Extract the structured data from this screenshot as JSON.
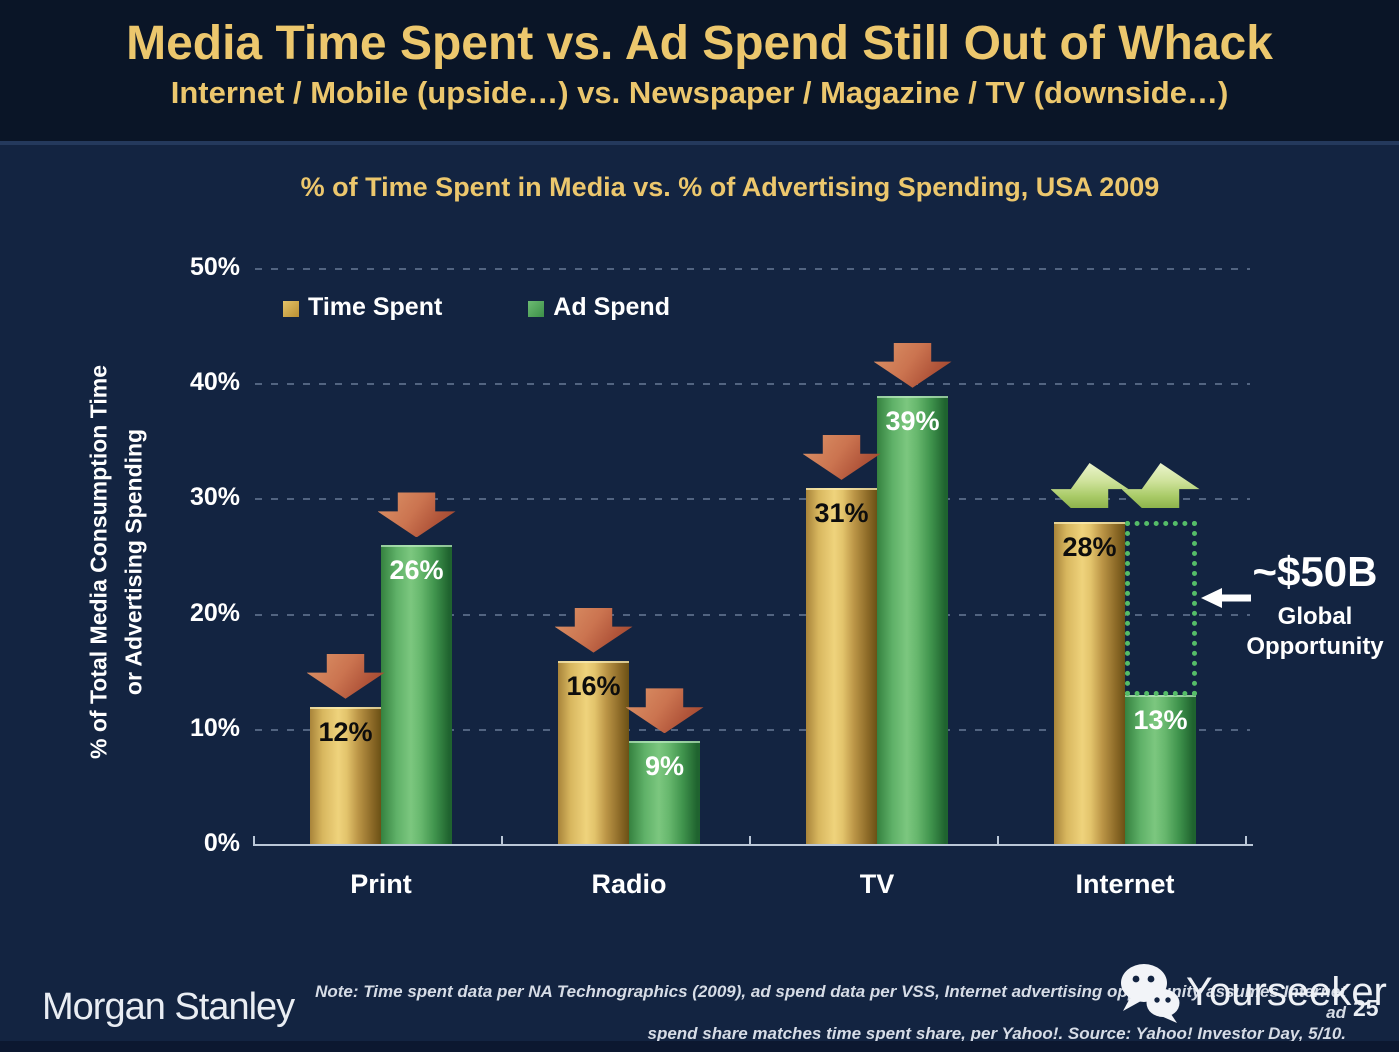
{
  "header": {
    "title": "Media Time Spent vs. Ad Spend Still Out of Whack",
    "subtitle": "Internet / Mobile (upside…) vs. Newspaper / Magazine / TV (downside…)"
  },
  "chart_data": {
    "type": "bar",
    "title": "% of Time Spent in Media vs. % of Advertising Spending, USA 2009",
    "categories": [
      "Print",
      "Radio",
      "TV",
      "Internet"
    ],
    "series": [
      {
        "name": "Time Spent",
        "values": [
          12,
          16,
          31,
          28
        ],
        "color": "#d2a84b"
      },
      {
        "name": "Ad Spend",
        "values": [
          26,
          9,
          39,
          13
        ],
        "color": "#4fa65a"
      }
    ],
    "ylabel_line1": "% of Total Media Consumption Time",
    "ylabel_line2": "or Advertising Spending",
    "ylim": [
      0,
      50
    ],
    "yticks": [
      "0%",
      "10%",
      "20%",
      "30%",
      "40%",
      "50%"
    ],
    "gridlines": true,
    "legend_position": "top-left",
    "trend_arrows": {
      "Print": [
        "down",
        "down"
      ],
      "Radio": [
        "down",
        "down"
      ],
      "TV": [
        "down",
        "down"
      ],
      "Internet": [
        "up",
        "up"
      ]
    }
  },
  "annotation": {
    "value": "~$50B",
    "label_line1": "Global",
    "label_line2": "Opportunity"
  },
  "footer": {
    "brand": "Morgan Stanley",
    "note_line1": "Note: Time spent data per NA Technographics (2009), ad spend data per VSS, Internet advertising opportunity assumes Internet ad",
    "note_line2": "spend share matches time spent share, per Yahoo!. Source: Yahoo! Investor Day, 5/10.",
    "page_number": "25"
  },
  "watermark": {
    "label": "Yourseeker"
  },
  "colors": {
    "background": "#132441",
    "header_background": "#0a1527",
    "title_gold": "#ecc76d",
    "bar_gold": "#d2a84b",
    "bar_green": "#4fa65a",
    "arrow_down": "#c06a46",
    "arrow_up": "#c3d98a",
    "dotted_box": "#55bd68"
  }
}
